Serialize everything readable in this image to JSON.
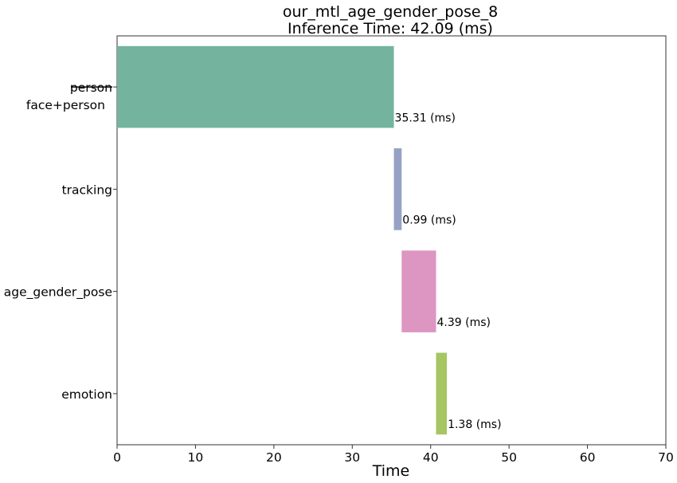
{
  "chart_data": {
    "type": "bar",
    "orientation": "horizontal",
    "title": "our_mtl_age_gender_pose_8",
    "subtitle": "Inference Time: 42.09 (ms)",
    "xlabel": "Time",
    "ylabel": "",
    "xlim": [
      0,
      70
    ],
    "xticks": [
      "0",
      "10",
      "20",
      "30",
      "40",
      "50",
      "60",
      "70"
    ],
    "grid": false,
    "categories": [
      {
        "label": "face+person",
        "struck_label": "person"
      },
      {
        "label": "tracking"
      },
      {
        "label": "age_gender_pose"
      },
      {
        "label": "emotion"
      }
    ],
    "bars": [
      {
        "category": "face+person",
        "start": 0,
        "duration": 35.31,
        "label": "35.31 (ms)",
        "color": "#74b49e"
      },
      {
        "category": "tracking",
        "start": 35.31,
        "duration": 0.99,
        "label": "0.99 (ms)",
        "color": "#96a2c5"
      },
      {
        "category": "age_gender_pose",
        "start": 36.3,
        "duration": 4.39,
        "label": "4.39 (ms)",
        "color": "#dc96c1"
      },
      {
        "category": "emotion",
        "start": 40.69,
        "duration": 1.38,
        "label": "1.38 (ms)",
        "color": "#a5c663"
      }
    ]
  }
}
